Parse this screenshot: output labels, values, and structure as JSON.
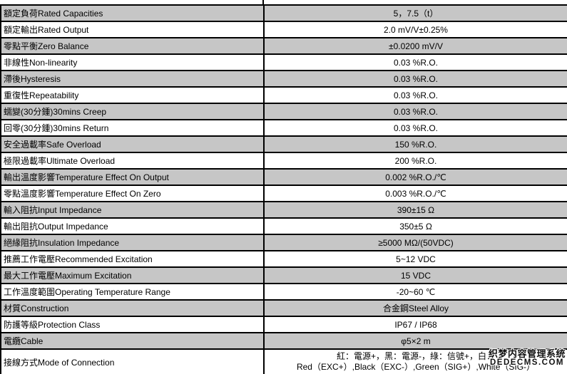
{
  "colors": {
    "row_shade": "#c6c6c6",
    "border": "#000000",
    "text": "#000000",
    "background": "#ffffff"
  },
  "watermark": {
    "line1": "织梦内容管理系统",
    "line2": "DEDECMS.COM"
  },
  "table": {
    "columns": [
      "parameter",
      "value"
    ],
    "rows": [
      {
        "label": "額定負荷Rated Capacities",
        "value": "5，7.5（t）",
        "shaded": true
      },
      {
        "label": "額定輸出Rated Output",
        "value": "2.0 mV/V±0.25%",
        "shaded": false
      },
      {
        "label": "零點平衡Zero Balance",
        "value": "±0.0200 mV/V",
        "shaded": true
      },
      {
        "label": "非線性Non-linearity",
        "value": "0.03 %R.O.",
        "shaded": false
      },
      {
        "label": "滯後Hysteresis",
        "value": "0.03 %R.O.",
        "shaded": true
      },
      {
        "label": "重復性Repeatability",
        "value": "0.03 %R.O.",
        "shaded": false
      },
      {
        "label": "蠕變(30分鍾)30mins Creep",
        "value": "0.03 %R.O.",
        "shaded": true
      },
      {
        "label": "回零(30分鍾)30mins Return",
        "value": "0.03 %R.O.",
        "shaded": false
      },
      {
        "label": "安全過載率Safe Overload",
        "value": "150 %R.O.",
        "shaded": true
      },
      {
        "label": "極限過載率Ultimate Overload",
        "value": "200 %R.O.",
        "shaded": false
      },
      {
        "label": "輸出溫度影響Temperature Effect On Output",
        "value": "0.002 %R.O./℃",
        "shaded": true
      },
      {
        "label": "零點溫度影響Temperature Effect On Zero",
        "value": "0.003 %R.O./℃",
        "shaded": false
      },
      {
        "label": "輸入阻抗Input Impedance",
        "value": "390±15 Ω",
        "shaded": true
      },
      {
        "label": "輸出阻抗Output Impedance",
        "value": "350±5 Ω",
        "shaded": false
      },
      {
        "label": "絕緣阻抗Insulation Impedance",
        "value": "≥5000 MΩ/(50VDC)",
        "shaded": true
      },
      {
        "label": "推薦工作電壓Recommended Excitation",
        "value": "5~12 VDC",
        "shaded": false
      },
      {
        "label": "最大工作電壓Maximum Excitation",
        "value": "15 VDC",
        "shaded": true
      },
      {
        "label": "工作溫度範圍Operating Temperature Range",
        "value": "-20~60 ℃",
        "shaded": false
      },
      {
        "label": "材質Construction",
        "value": "合金鋼Steel Alloy",
        "shaded": true
      },
      {
        "label": "防護等級Protection Class",
        "value": "IP67 / IP68",
        "shaded": false
      },
      {
        "label": "電纜Cable",
        "value": "φ5×2 m",
        "shaded": true
      },
      {
        "label": "接線方式Mode of Connection",
        "value_lines": [
          "紅：電源+，黑：電源-，綠：信號+，白：",
          "Red（EXC+）,Black（EXC-）,Green（SIG+）,White（SIG-）"
        ],
        "shaded": false,
        "tall": true
      }
    ]
  }
}
